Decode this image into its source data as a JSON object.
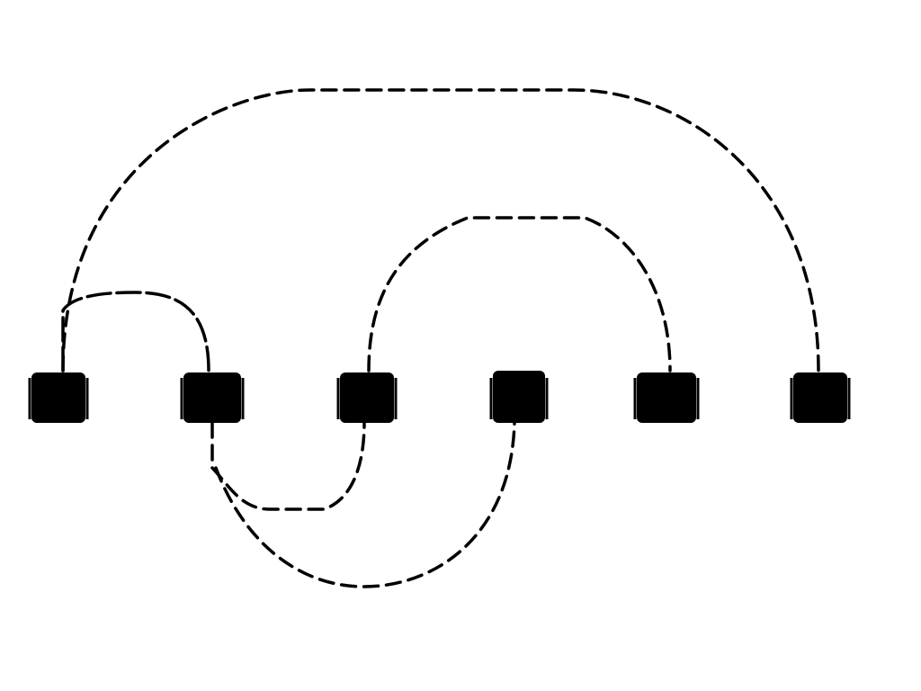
{
  "diagram": {
    "type": "arc-diagram",
    "node_count": 6,
    "nodes": [
      {
        "id": "n1",
        "shape": "filled-square"
      },
      {
        "id": "n2",
        "shape": "filled-square"
      },
      {
        "id": "n3",
        "shape": "filled-square"
      },
      {
        "id": "n4",
        "shape": "filled-square"
      },
      {
        "id": "n5",
        "shape": "filled-square"
      },
      {
        "id": "n6",
        "shape": "filled-square"
      }
    ],
    "edges": [
      {
        "from": "n1",
        "to": "n6",
        "side": "upper"
      },
      {
        "from": "n1",
        "to": "n2",
        "side": "upper"
      },
      {
        "from": "n3",
        "to": "n5",
        "side": "upper"
      },
      {
        "from": "n2",
        "to": "n3",
        "side": "lower"
      },
      {
        "from": "n2",
        "to": "n4",
        "side": "lower"
      }
    ],
    "colors": {
      "background": "#ffffff",
      "ink": "#000000"
    }
  }
}
